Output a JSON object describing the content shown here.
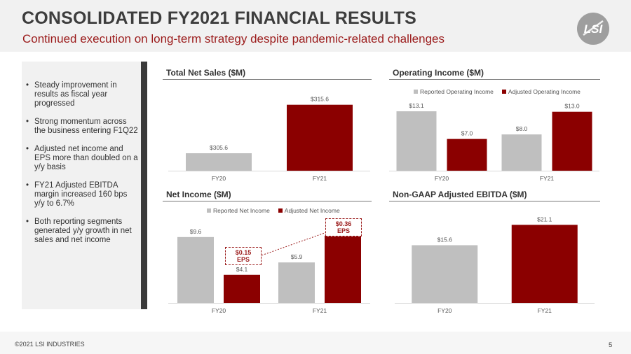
{
  "slide": {
    "title": "CONSOLIDATED FY2021 FINANCIAL RESULTS",
    "subtitle": "Continued execution on long-term strategy despite pandemic-related challenges",
    "logo_text": "LSI",
    "footer": "©2021 LSI INDUSTRIES",
    "page_number": "5"
  },
  "sidebar": {
    "bullets": [
      "Steady improvement in results as fiscal year progressed",
      "Strong momentum across the business entering F1Q22",
      "Adjusted net income and EPS more than doubled on a y/y basis",
      "FY21 Adjusted EBITDA margin increased 160 bps y/y to 6.7%",
      "Both reporting segments generated y/y growth in net sales and net income"
    ]
  },
  "colors": {
    "gray": "#bfbfbf",
    "red": "#8b0000",
    "accent": "#9b1b1b"
  },
  "chart_data": [
    {
      "id": "net-sales",
      "type": "bar",
      "title": "Total Net Sales ($M)",
      "categories": [
        "FY20",
        "FY21"
      ],
      "series": [
        {
          "values": [
            305.6,
            315.6
          ],
          "labels": [
            "$305.6",
            "$315.6"
          ],
          "colors": [
            "#bfbfbf",
            "#8b0000"
          ]
        }
      ],
      "ylim": [
        302,
        317
      ]
    },
    {
      "id": "operating-income",
      "type": "bar",
      "title": "Operating Income ($M)",
      "categories": [
        "FY20",
        "FY21"
      ],
      "series": [
        {
          "name": "Reported Operating Income",
          "values": [
            13.1,
            8.0
          ],
          "labels": [
            "$13.1",
            "$8.0"
          ],
          "color": "#bfbfbf"
        },
        {
          "name": "Adjusted Operating Income",
          "values": [
            7.0,
            13.0
          ],
          "labels": [
            "$7.0",
            "$13.0"
          ],
          "color": "#8b0000"
        }
      ],
      "ylim": [
        0,
        14.5
      ],
      "legend": "top"
    },
    {
      "id": "net-income",
      "type": "bar",
      "title": "Net Income ($M)",
      "categories": [
        "FY20",
        "FY21"
      ],
      "series": [
        {
          "name": "Reported Net Income",
          "values": [
            9.6,
            5.9
          ],
          "labels": [
            "$9.6",
            "$5.9"
          ],
          "color": "#bfbfbf"
        },
        {
          "name": "Adjusted Net Income",
          "values": [
            4.1,
            9.8
          ],
          "labels": [
            "$4.1",
            "$9.8"
          ],
          "color": "#8b0000"
        }
      ],
      "ylim": [
        0,
        10.5
      ],
      "legend": "top",
      "annotations": [
        {
          "line1": "$0.15",
          "line2": "EPS"
        },
        {
          "line1": "$0.36",
          "line2": "EPS"
        }
      ]
    },
    {
      "id": "adjusted-ebitda",
      "type": "bar",
      "title": "Non-GAAP Adjusted EBITDA ($M)",
      "categories": [
        "FY20",
        "FY21"
      ],
      "series": [
        {
          "values": [
            15.6,
            21.1
          ],
          "labels": [
            "$15.6",
            "$21.1"
          ],
          "colors": [
            "#bfbfbf",
            "#8b0000"
          ]
        }
      ],
      "ylim": [
        0,
        22.5
      ]
    }
  ]
}
